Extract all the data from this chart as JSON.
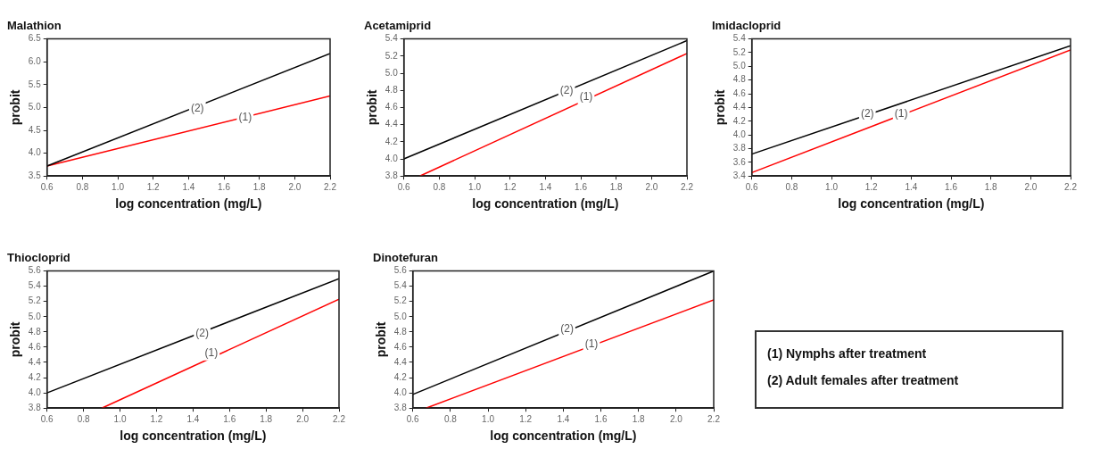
{
  "chart_data": [
    {
      "type": "line",
      "title": "Malathion",
      "xlabel": "log concentration (mg/L)",
      "ylabel": "probit",
      "xlim": [
        0.6,
        2.2
      ],
      "xticks": [
        {
          "value": 0.6,
          "label": "0.6"
        },
        {
          "value": 0.8,
          "label": "0.8"
        },
        {
          "value": 1.0,
          "label": "1.0"
        },
        {
          "value": 1.2,
          "label": "1.2"
        },
        {
          "value": 1.4,
          "label": "1.4"
        },
        {
          "value": 1.6,
          "label": "1.6"
        },
        {
          "value": 1.8,
          "label": "1.8"
        },
        {
          "value": 2.0,
          "label": "2.0"
        },
        {
          "value": 2.2,
          "label": "2.2"
        }
      ],
      "ylim": [
        3.5,
        6.5
      ],
      "yticks": [
        3.5,
        {
          "value": 4.0,
          "label": "4.0"
        },
        4.5,
        {
          "value": 5.0,
          "label": "5.0"
        },
        5.5,
        {
          "value": 6.0,
          "label": "6.0"
        },
        6.5
      ],
      "grid": false,
      "legend": false,
      "marker": "none",
      "series": [
        {
          "color": "#000000",
          "x": [
            0.6,
            2.2
          ],
          "values": [
            3.72,
            6.18
          ]
        },
        {
          "color": "#ff0000",
          "x": [
            0.6,
            2.2
          ],
          "values": [
            3.72,
            5.25
          ]
        }
      ],
      "annotations": [
        {
          "text": "(2)",
          "x": 1.45,
          "y": 4.97
        },
        {
          "text": "(1)",
          "x": 1.72,
          "y": 4.78
        }
      ]
    },
    {
      "type": "line",
      "title": "Acetamiprid",
      "xlabel": "log concentration (mg/L)",
      "ylabel": "probit",
      "xlim": [
        0.6,
        2.2
      ],
      "xticks": [
        {
          "value": 0.6,
          "label": "0.6"
        },
        {
          "value": 0.8,
          "label": "0.8"
        },
        {
          "value": 1.0,
          "label": "1.0"
        },
        {
          "value": 1.2,
          "label": "1.2"
        },
        {
          "value": 1.4,
          "label": "1.4"
        },
        {
          "value": 1.6,
          "label": "1.6"
        },
        {
          "value": 1.8,
          "label": "1.8"
        },
        {
          "value": 2.0,
          "label": "2.0"
        },
        {
          "value": 2.2,
          "label": "2.2"
        }
      ],
      "ylim": [
        3.8,
        5.4
      ],
      "yticks": [
        3.8,
        {
          "value": 4.0,
          "label": "4.0"
        },
        4.2,
        4.4,
        4.6,
        4.8,
        {
          "value": 5.0,
          "label": "5.0"
        },
        5.2,
        5.4
      ],
      "grid": false,
      "legend": false,
      "marker": "none",
      "series": [
        {
          "color": "#000000",
          "x": [
            0.6,
            2.2
          ],
          "values": [
            4.0,
            5.38
          ]
        },
        {
          "color": "#ff0000",
          "x": [
            0.69,
            2.2
          ],
          "values": [
            3.8,
            5.23
          ]
        }
      ],
      "annotations": [
        {
          "text": "(2)",
          "x": 1.52,
          "y": 4.8
        },
        {
          "text": "(1)",
          "x": 1.63,
          "y": 4.72
        }
      ]
    },
    {
      "type": "line",
      "title": "Imidacloprid",
      "xlabel": "log concentration (mg/L)",
      "ylabel": "probit",
      "xlim": [
        0.6,
        2.2
      ],
      "xticks": [
        {
          "value": 0.6,
          "label": "0.6"
        },
        {
          "value": 0.8,
          "label": "0.8"
        },
        {
          "value": 1.0,
          "label": "1.0"
        },
        {
          "value": 1.2,
          "label": "1.2"
        },
        {
          "value": 1.4,
          "label": "1.4"
        },
        {
          "value": 1.6,
          "label": "1.6"
        },
        {
          "value": 1.8,
          "label": "1.8"
        },
        {
          "value": 2.0,
          "label": "2.0"
        },
        {
          "value": 2.2,
          "label": "2.2"
        }
      ],
      "ylim": [
        3.4,
        5.4
      ],
      "yticks": [
        3.4,
        3.6,
        3.8,
        {
          "value": 4.0,
          "label": "4.0"
        },
        4.2,
        4.4,
        4.6,
        4.8,
        {
          "value": 5.0,
          "label": "5.0"
        },
        5.2,
        5.4
      ],
      "grid": false,
      "legend": false,
      "marker": "none",
      "series": [
        {
          "color": "#000000",
          "x": [
            0.6,
            2.2
          ],
          "values": [
            3.72,
            5.3
          ]
        },
        {
          "color": "#ff0000",
          "x": [
            0.6,
            2.2
          ],
          "values": [
            3.45,
            5.24
          ]
        }
      ],
      "annotations": [
        {
          "text": "(2)",
          "x": 1.18,
          "y": 4.3
        },
        {
          "text": "(1)",
          "x": 1.35,
          "y": 4.3
        }
      ]
    },
    {
      "type": "line",
      "title": "Thiocloprid",
      "xlabel": "log concentration (mg/L)",
      "ylabel": "probit",
      "xlim": [
        0.6,
        2.2
      ],
      "xticks": [
        {
          "value": 0.6,
          "label": "0.6"
        },
        {
          "value": 0.8,
          "label": "0.8"
        },
        {
          "value": 1.0,
          "label": "1.0"
        },
        {
          "value": 1.2,
          "label": "1.2"
        },
        {
          "value": 1.4,
          "label": "1.4"
        },
        {
          "value": 1.6,
          "label": "1.6"
        },
        {
          "value": 1.8,
          "label": "1.8"
        },
        {
          "value": 2.0,
          "label": "2.0"
        },
        {
          "value": 2.2,
          "label": "2.2"
        }
      ],
      "ylim": [
        3.8,
        5.6
      ],
      "yticks": [
        3.8,
        {
          "value": 4.0,
          "label": "4.0"
        },
        4.2,
        4.4,
        4.6,
        4.8,
        {
          "value": 5.0,
          "label": "5.0"
        },
        5.2,
        5.4,
        5.6
      ],
      "grid": false,
      "legend": false,
      "marker": "none",
      "series": [
        {
          "color": "#000000",
          "x": [
            0.6,
            2.2
          ],
          "values": [
            4.0,
            5.5
          ]
        },
        {
          "color": "#ff0000",
          "x": [
            0.9,
            2.2
          ],
          "values": [
            3.8,
            5.23
          ]
        }
      ],
      "annotations": [
        {
          "text": "(2)",
          "x": 1.45,
          "y": 4.78
        },
        {
          "text": "(1)",
          "x": 1.5,
          "y": 4.52
        }
      ]
    },
    {
      "type": "line",
      "title": "Dinotefuran",
      "xlabel": "log concentration (mg/L)",
      "ylabel": "probit",
      "xlim": [
        0.6,
        2.2
      ],
      "xticks": [
        {
          "value": 0.6,
          "label": "0.6"
        },
        {
          "value": 0.8,
          "label": "0.8"
        },
        {
          "value": 1.0,
          "label": "1.0"
        },
        {
          "value": 1.2,
          "label": "1.2"
        },
        {
          "value": 1.4,
          "label": "1.4"
        },
        {
          "value": 1.6,
          "label": "1.6"
        },
        {
          "value": 1.8,
          "label": "1.8"
        },
        {
          "value": 2.0,
          "label": "2.0"
        },
        {
          "value": 2.2,
          "label": "2.2"
        }
      ],
      "ylim": [
        3.8,
        5.6
      ],
      "yticks": [
        3.8,
        {
          "value": 4.0,
          "label": "4.0"
        },
        4.2,
        4.4,
        4.6,
        4.8,
        {
          "value": 5.0,
          "label": "5.0"
        },
        5.2,
        5.4,
        5.6
      ],
      "grid": false,
      "legend": false,
      "marker": "none",
      "series": [
        {
          "color": "#000000",
          "x": [
            0.6,
            2.2
          ],
          "values": [
            3.98,
            5.6
          ]
        },
        {
          "color": "#ff0000",
          "x": [
            0.67,
            2.2
          ],
          "values": [
            3.8,
            5.22
          ]
        }
      ],
      "annotations": [
        {
          "text": "(2)",
          "x": 1.42,
          "y": 4.84
        },
        {
          "text": "(1)",
          "x": 1.55,
          "y": 4.64
        }
      ]
    },
    {
      "type": "other",
      "annotations": [
        "(1) Nymphs after treatment",
        "(2) Adult females after treatment"
      ]
    }
  ]
}
